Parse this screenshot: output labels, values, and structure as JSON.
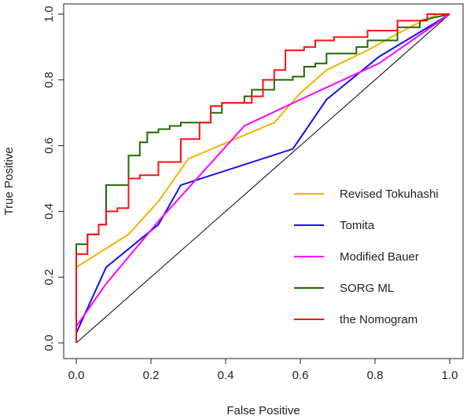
{
  "chart_data": {
    "type": "line",
    "title": "",
    "xlabel": "False Positive",
    "ylabel": "True Positive",
    "xlim": [
      0,
      1
    ],
    "ylim": [
      0,
      1
    ],
    "xticks": [
      0.0,
      0.2,
      0.4,
      0.6,
      0.8,
      1.0
    ],
    "xtick_labels": [
      "0.0",
      "0.2",
      "0.4",
      "0.6",
      "0.8",
      "1.0"
    ],
    "yticks": [
      0.0,
      0.2,
      0.4,
      0.6,
      0.8,
      1.0
    ],
    "ytick_labels": [
      "0.0",
      "0.2",
      "0.4",
      "0.6",
      "0.8",
      "1.0"
    ],
    "grid": false,
    "legend_position": "bottom-right",
    "reference_line": {
      "x": [
        0,
        1
      ],
      "y": [
        0,
        1
      ],
      "color": "#000000"
    },
    "series": [
      {
        "name": "Revised Tokuhashi",
        "color": "#f0b400",
        "x": [
          0,
          0,
          0.14,
          0.22,
          0.3,
          0.53,
          0.6,
          0.67,
          0.78,
          0.86,
          0.91,
          0.97,
          1.0
        ],
        "y": [
          0,
          0.23,
          0.33,
          0.43,
          0.56,
          0.67,
          0.76,
          0.83,
          0.89,
          0.94,
          0.97,
          1.0,
          1.0
        ]
      },
      {
        "name": "Tomita",
        "color": "#1010f0",
        "x": [
          0,
          0.08,
          0.22,
          0.28,
          0.58,
          0.67,
          0.81,
          1.0
        ],
        "y": [
          0.03,
          0.23,
          0.36,
          0.48,
          0.59,
          0.74,
          0.87,
          1.0
        ]
      },
      {
        "name": "Modified Bauer",
        "color": "#ff00ff",
        "x": [
          0,
          0.08,
          0.22,
          0.45,
          0.6,
          0.81,
          1.0
        ],
        "y": [
          0.05,
          0.18,
          0.37,
          0.66,
          0.74,
          0.85,
          1.0
        ]
      },
      {
        "name": "SORG ML",
        "color": "#1e6b00",
        "x": [
          0,
          0,
          0.03,
          0.03,
          0.06,
          0.06,
          0.08,
          0.08,
          0.14,
          0.14,
          0.17,
          0.17,
          0.19,
          0.19,
          0.22,
          0.22,
          0.25,
          0.25,
          0.28,
          0.28,
          0.36,
          0.36,
          0.39,
          0.39,
          0.45,
          0.45,
          0.47,
          0.47,
          0.53,
          0.53,
          0.58,
          0.58,
          0.61,
          0.61,
          0.64,
          0.64,
          0.67,
          0.67,
          0.75,
          0.75,
          0.78,
          0.78,
          0.86,
          0.86,
          0.92,
          0.92,
          1.0
        ],
        "y": [
          0,
          0.3,
          0.3,
          0.33,
          0.33,
          0.36,
          0.36,
          0.48,
          0.48,
          0.57,
          0.57,
          0.61,
          0.61,
          0.64,
          0.64,
          0.65,
          0.65,
          0.66,
          0.66,
          0.67,
          0.67,
          0.7,
          0.7,
          0.73,
          0.73,
          0.75,
          0.75,
          0.77,
          0.77,
          0.8,
          0.8,
          0.81,
          0.81,
          0.84,
          0.84,
          0.85,
          0.85,
          0.88,
          0.88,
          0.9,
          0.9,
          0.92,
          0.92,
          0.96,
          0.96,
          0.98,
          1.0
        ]
      },
      {
        "name": "the Nomogram",
        "color": "#ff1010",
        "x": [
          0,
          0,
          0.03,
          0.03,
          0.06,
          0.06,
          0.08,
          0.08,
          0.11,
          0.11,
          0.14,
          0.14,
          0.17,
          0.17,
          0.22,
          0.22,
          0.28,
          0.28,
          0.33,
          0.33,
          0.36,
          0.36,
          0.39,
          0.39,
          0.47,
          0.47,
          0.5,
          0.5,
          0.53,
          0.53,
          0.56,
          0.56,
          0.61,
          0.61,
          0.64,
          0.64,
          0.69,
          0.69,
          0.78,
          0.78,
          0.86,
          0.86,
          0.94,
          0.94,
          1.0
        ],
        "y": [
          0,
          0.27,
          0.27,
          0.33,
          0.33,
          0.36,
          0.36,
          0.4,
          0.4,
          0.41,
          0.41,
          0.5,
          0.5,
          0.51,
          0.51,
          0.55,
          0.55,
          0.62,
          0.62,
          0.67,
          0.67,
          0.72,
          0.72,
          0.73,
          0.73,
          0.75,
          0.75,
          0.8,
          0.8,
          0.83,
          0.83,
          0.89,
          0.89,
          0.9,
          0.9,
          0.92,
          0.92,
          0.93,
          0.93,
          0.95,
          0.95,
          0.98,
          0.98,
          1.0,
          1.0
        ]
      }
    ]
  }
}
